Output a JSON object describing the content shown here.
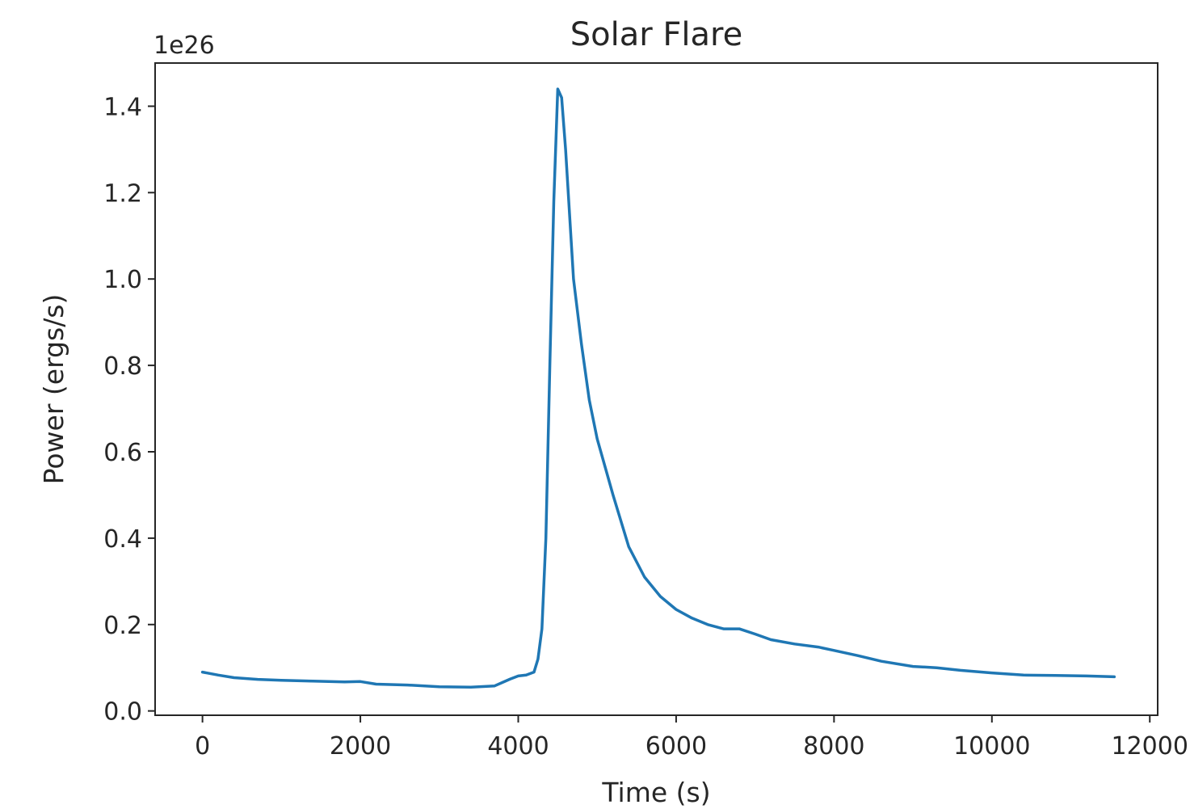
{
  "chart_data": {
    "type": "line",
    "title": "Solar Flare",
    "xlabel": "Time (s)",
    "ylabel": "Power (ergs/s)",
    "y_offset_label": "1e26",
    "xlim": [
      -600,
      12100
    ],
    "ylim": [
      -0.01,
      1.5
    ],
    "x_ticks": [
      0,
      2000,
      4000,
      6000,
      8000,
      10000,
      12000
    ],
    "x_tick_labels": [
      "0",
      "2000",
      "4000",
      "6000",
      "8000",
      "10000",
      "12000"
    ],
    "y_ticks": [
      0.0,
      0.2,
      0.4,
      0.6,
      0.8,
      1.0,
      1.2,
      1.4
    ],
    "y_tick_labels": [
      "0.0",
      "0.2",
      "0.4",
      "0.6",
      "0.8",
      "1.0",
      "1.2",
      "1.4"
    ],
    "grid": false,
    "series": [
      {
        "color": "#1f77b4",
        "x": [
          0,
          200,
          400,
          700,
          1000,
          1400,
          1800,
          2000,
          2200,
          2600,
          3000,
          3400,
          3700,
          3800,
          3900,
          4000,
          4100,
          4200,
          4250,
          4300,
          4350,
          4400,
          4450,
          4500,
          4550,
          4600,
          4650,
          4700,
          4800,
          4900,
          5000,
          5200,
          5400,
          5600,
          5800,
          6000,
          6200,
          6400,
          6600,
          6800,
          7000,
          7200,
          7500,
          7800,
          8000,
          8300,
          8600,
          9000,
          9300,
          9600,
          10000,
          10400,
          10800,
          11200,
          11550
        ],
        "y": [
          0.09,
          0.083,
          0.077,
          0.073,
          0.071,
          0.069,
          0.067,
          0.068,
          0.062,
          0.06,
          0.056,
          0.055,
          0.058,
          0.066,
          0.074,
          0.081,
          0.083,
          0.09,
          0.12,
          0.19,
          0.4,
          0.8,
          1.18,
          1.44,
          1.42,
          1.3,
          1.15,
          1.0,
          0.85,
          0.72,
          0.63,
          0.5,
          0.38,
          0.31,
          0.265,
          0.235,
          0.215,
          0.2,
          0.19,
          0.19,
          0.178,
          0.165,
          0.155,
          0.148,
          0.14,
          0.128,
          0.115,
          0.103,
          0.1,
          0.094,
          0.088,
          0.083,
          0.082,
          0.081,
          0.079
        ]
      }
    ]
  }
}
